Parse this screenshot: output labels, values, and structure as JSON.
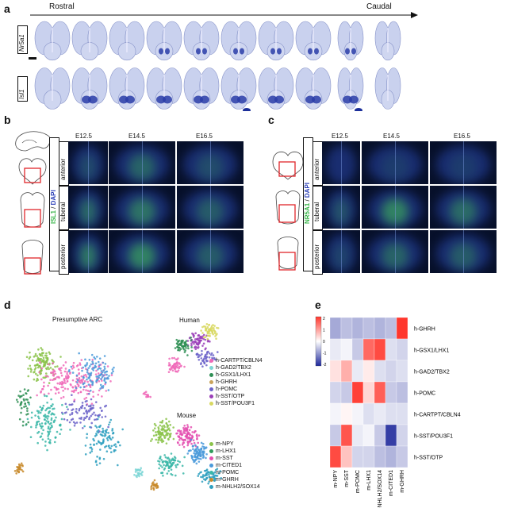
{
  "panels": {
    "a": {
      "letter": "a",
      "axis_start": "Rostral",
      "axis_end": "Caudal",
      "row_labels": [
        "Nr5a1",
        "Isl1"
      ]
    },
    "b": {
      "letter": "b",
      "stain_label_1": "ISL1",
      "stain_sep": " / ",
      "stain_label_2": "DAPI",
      "timepoints": [
        "E12.5",
        "E14.5",
        "E16.5"
      ],
      "regions": [
        "anterior",
        "tuberal",
        "posterior"
      ]
    },
    "c": {
      "letter": "c",
      "stain_label_1": "NR5A1",
      "stain_sep": " / ",
      "stain_label_2": "DAPI",
      "timepoints": [
        "E12.5",
        "E14.5",
        "E16.5"
      ],
      "regions": [
        "anterior",
        "tuberal",
        "posterior"
      ]
    },
    "d": {
      "letter": "d",
      "titles": {
        "main": "Presumptive ARC",
        "human": "Human",
        "mouse": "Mouse"
      },
      "human_legend": [
        {
          "label": "h-CARTPT/CBLN4",
          "color": "#f06ab8"
        },
        {
          "label": "h-GAD2/TBX2",
          "color": "#7ed6d6"
        },
        {
          "label": "h-GSX1/LHX1",
          "color": "#2f8f55"
        },
        {
          "label": "h-GHRH",
          "color": "#c9a35b"
        },
        {
          "label": "h-POMC",
          "color": "#6b63c9"
        },
        {
          "label": "h-SST/OTP",
          "color": "#9a3fb8"
        },
        {
          "label": "h-SST/POU3F1",
          "color": "#d8d860"
        }
      ],
      "mouse_legend": [
        {
          "label": "m-NPY",
          "color": "#8bc34a"
        },
        {
          "label": "m-LHX1",
          "color": "#2e9a5a"
        },
        {
          "label": "m-SST",
          "color": "#e44fb0"
        },
        {
          "label": "m-CITED1",
          "color": "#4a9adb"
        },
        {
          "label": "m-POMC",
          "color": "#3bb7a8"
        },
        {
          "label": "m-GHRH",
          "color": "#c88a2a"
        },
        {
          "label": "m-NHLH2/SOX14",
          "color": "#2fa0c0"
        }
      ]
    },
    "e": {
      "letter": "e",
      "colorbar_ticks": [
        "2",
        "1",
        "0",
        "-1",
        "-2"
      ]
    }
  },
  "chart_data": {
    "type": "heatmap",
    "rows": [
      "h-GHRH",
      "h-GSX1/LHX1",
      "h-GAD2/TBX2",
      "h-POMC",
      "h-CARTPT/CBLN4",
      "h-SST/POU3F1",
      "h-SST/OTP"
    ],
    "columns": [
      "m-NPY",
      "m-SST",
      "m-POMC",
      "m-LHX1",
      "m-NHLH2/SOX14",
      "m-CITED1",
      "m-GHRH"
    ],
    "values": [
      [
        -0.8,
        -0.6,
        -0.7,
        -0.6,
        -0.7,
        -0.6,
        2.0
      ],
      [
        -0.2,
        -0.1,
        -0.5,
        1.5,
        1.8,
        -0.3,
        -0.4
      ],
      [
        0.3,
        0.8,
        -0.2,
        0.2,
        -0.3,
        -0.4,
        -0.3
      ],
      [
        -0.4,
        -0.5,
        1.9,
        0.4,
        1.6,
        -0.5,
        -0.6
      ],
      [
        -0.1,
        0.1,
        -0.1,
        -0.3,
        -0.2,
        -0.3,
        -0.3
      ],
      [
        -0.5,
        1.7,
        -0.2,
        -0.1,
        -0.5,
        -1.8,
        -0.4
      ],
      [
        1.8,
        0.6,
        -0.4,
        -0.4,
        -0.6,
        -0.7,
        -0.5
      ]
    ],
    "vmin": -2,
    "vmax": 2
  }
}
